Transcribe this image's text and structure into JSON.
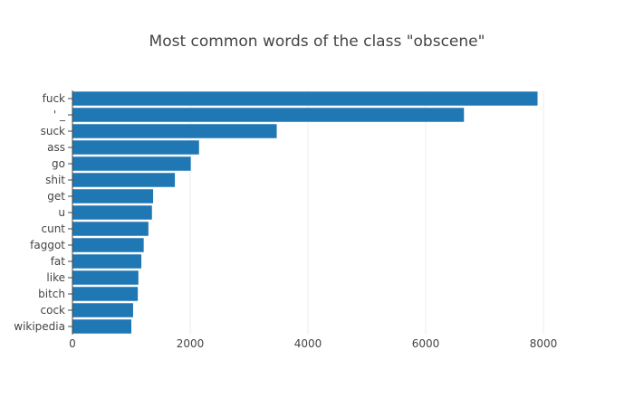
{
  "chart_data": {
    "type": "bar",
    "orientation": "horizontal",
    "title": "Most common words of the class \"obscene\"",
    "xlabel": "",
    "ylabel": "",
    "xlim": [
      0,
      9000
    ],
    "x_ticks": [
      0,
      2000,
      4000,
      6000,
      8000
    ],
    "x_tick_labels": [
      "0",
      "2000",
      "4000",
      "6000",
      "8000"
    ],
    "grid": true,
    "categories": [
      "fuck",
      "' _",
      "suck",
      "ass",
      "go",
      "shit",
      "get",
      "u",
      "cunt",
      "faggot",
      "fat",
      "like",
      "bitch",
      "cock",
      "wikipedia"
    ],
    "values": [
      7900,
      6650,
      3470,
      2150,
      2010,
      1740,
      1370,
      1350,
      1290,
      1210,
      1170,
      1120,
      1110,
      1030,
      1000
    ],
    "bar_color": "#1f77b4",
    "grid_color": "#eeeeee",
    "axis_color": "#444444"
  }
}
